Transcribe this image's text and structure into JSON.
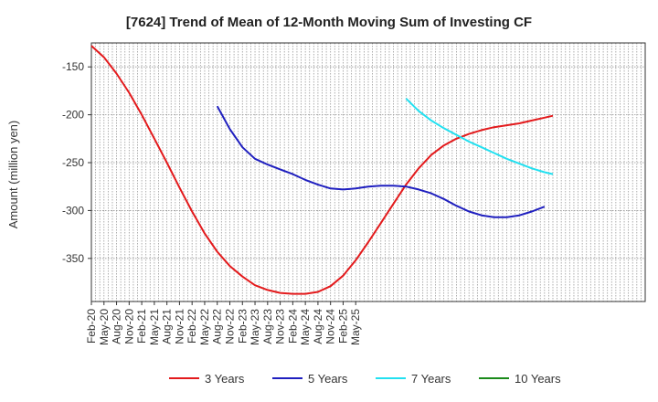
{
  "chart_data": {
    "type": "line",
    "title": "[7624]  Trend of Mean of 12-Month Moving Sum of Investing CF",
    "xlabel": "",
    "ylabel": "Amount (million yen)",
    "ylim": [
      -395,
      -125
    ],
    "yticks": [
      -150,
      -200,
      -250,
      -300,
      -350
    ],
    "xlim": [
      0,
      132
    ],
    "x_tick_labels": [
      "Feb-20",
      "May-20",
      "Aug-20",
      "Nov-20",
      "Feb-21",
      "May-21",
      "Aug-21",
      "Nov-21",
      "Feb-22",
      "May-22",
      "Aug-22",
      "Nov-22",
      "Feb-23",
      "May-23",
      "Aug-23",
      "Nov-23",
      "Feb-24",
      "May-24",
      "Aug-24",
      "Nov-24",
      "Feb-25",
      "May-25"
    ],
    "x_unit": "months since Feb-20",
    "grid": true,
    "legend_position": "bottom",
    "series": [
      {
        "name": "3 Years",
        "color": "#e31a1c",
        "points": [
          [
            0,
            -128
          ],
          [
            3,
            -140
          ],
          [
            6,
            -157
          ],
          [
            9,
            -177
          ],
          [
            12,
            -200
          ],
          [
            15,
            -225
          ],
          [
            18,
            -250
          ],
          [
            21,
            -276
          ],
          [
            24,
            -301
          ],
          [
            27,
            -324
          ],
          [
            30,
            -343
          ],
          [
            33,
            -358
          ],
          [
            36,
            -369
          ],
          [
            39,
            -378
          ],
          [
            42,
            -383
          ],
          [
            45,
            -386
          ],
          [
            48,
            -387
          ],
          [
            51,
            -387
          ],
          [
            54,
            -385
          ],
          [
            57,
            -379
          ],
          [
            60,
            -368
          ],
          [
            63,
            -352
          ],
          [
            66,
            -333
          ],
          [
            69,
            -313
          ],
          [
            72,
            -293
          ],
          [
            75,
            -273
          ],
          [
            78,
            -256
          ],
          [
            81,
            -242
          ],
          [
            84,
            -232
          ],
          [
            87,
            -225
          ],
          [
            90,
            -220
          ],
          [
            93,
            -216
          ],
          [
            96,
            -213
          ],
          [
            99,
            -211
          ],
          [
            102,
            -209
          ],
          [
            105,
            -206
          ],
          [
            108,
            -203
          ],
          [
            110,
            -201
          ]
        ]
      },
      {
        "name": "5 Years",
        "color": "#1f1fbf",
        "points": [
          [
            30,
            -191
          ],
          [
            33,
            -215
          ],
          [
            36,
            -234
          ],
          [
            39,
            -246
          ],
          [
            42,
            -252
          ],
          [
            45,
            -257
          ],
          [
            48,
            -262
          ],
          [
            51,
            -268
          ],
          [
            54,
            -273
          ],
          [
            57,
            -277
          ],
          [
            60,
            -278
          ],
          [
            63,
            -277
          ],
          [
            66,
            -275
          ],
          [
            69,
            -274
          ],
          [
            72,
            -274
          ],
          [
            75,
            -275
          ],
          [
            78,
            -278
          ],
          [
            81,
            -282
          ],
          [
            84,
            -288
          ],
          [
            87,
            -295
          ],
          [
            90,
            -301
          ],
          [
            93,
            -305
          ],
          [
            96,
            -307
          ],
          [
            99,
            -307
          ],
          [
            102,
            -305
          ],
          [
            105,
            -301
          ],
          [
            108,
            -296
          ]
        ]
      },
      {
        "name": "7 Years",
        "color": "#22e0f0",
        "points": [
          [
            75,
            -183
          ],
          [
            78,
            -196
          ],
          [
            81,
            -206
          ],
          [
            84,
            -214
          ],
          [
            87,
            -221
          ],
          [
            90,
            -228
          ],
          [
            93,
            -234
          ],
          [
            96,
            -240
          ],
          [
            99,
            -246
          ],
          [
            102,
            -251
          ],
          [
            105,
            -256
          ],
          [
            108,
            -260
          ],
          [
            110,
            -262
          ]
        ]
      },
      {
        "name": "10 Years",
        "color": "#1a8a1a",
        "points": []
      }
    ]
  }
}
